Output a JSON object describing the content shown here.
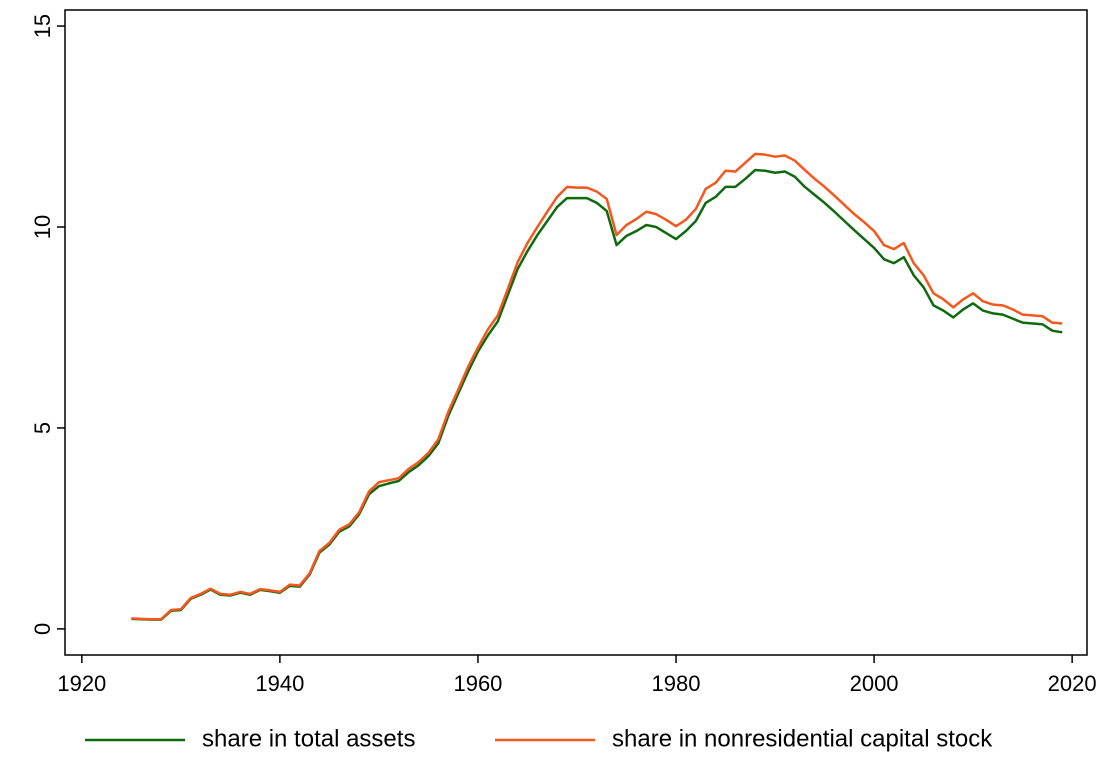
{
  "chart_data": {
    "type": "line",
    "x": [
      1925,
      1926,
      1927,
      1928,
      1929,
      1930,
      1931,
      1932,
      1933,
      1934,
      1935,
      1936,
      1937,
      1938,
      1939,
      1940,
      1941,
      1942,
      1943,
      1944,
      1945,
      1946,
      1947,
      1948,
      1949,
      1950,
      1951,
      1952,
      1953,
      1954,
      1955,
      1956,
      1957,
      1958,
      1959,
      1960,
      1961,
      1962,
      1963,
      1964,
      1965,
      1966,
      1967,
      1968,
      1969,
      1970,
      1971,
      1972,
      1973,
      1974,
      1975,
      1976,
      1977,
      1978,
      1979,
      1980,
      1981,
      1982,
      1983,
      1984,
      1985,
      1986,
      1987,
      1988,
      1989,
      1990,
      1991,
      1992,
      1993,
      1994,
      1995,
      1996,
      1997,
      1998,
      1999,
      2000,
      2001,
      2002,
      2003,
      2004,
      2005,
      2006,
      2007,
      2008,
      2009,
      2010,
      2011,
      2012,
      2013,
      2014,
      2015,
      2016,
      2017,
      2018,
      2019
    ],
    "series": [
      {
        "name": "share in total assets",
        "color": "#0f6a0f",
        "values": [
          0.25,
          0.24,
          0.23,
          0.23,
          0.45,
          0.47,
          0.75,
          0.85,
          0.98,
          0.85,
          0.83,
          0.9,
          0.85,
          0.97,
          0.94,
          0.9,
          1.07,
          1.05,
          1.35,
          1.9,
          2.1,
          2.42,
          2.55,
          2.85,
          3.35,
          3.55,
          3.62,
          3.68,
          3.9,
          4.07,
          4.3,
          4.62,
          5.3,
          5.85,
          6.4,
          6.9,
          7.3,
          7.65,
          8.3,
          8.95,
          9.4,
          9.8,
          10.15,
          10.5,
          10.72,
          10.72,
          10.72,
          10.6,
          10.4,
          9.55,
          9.78,
          9.9,
          10.05,
          10.0,
          9.85,
          9.7,
          9.9,
          10.15,
          10.6,
          10.75,
          11.0,
          11.0,
          11.2,
          11.42,
          11.4,
          11.35,
          11.38,
          11.25,
          11.0,
          10.8,
          10.6,
          10.38,
          10.15,
          9.92,
          9.7,
          9.48,
          9.2,
          9.1,
          9.25,
          8.8,
          8.5,
          8.05,
          7.92,
          7.75,
          7.95,
          8.1,
          7.92,
          7.85,
          7.82,
          7.72,
          7.62,
          7.6,
          7.58,
          7.42,
          7.38
        ]
      },
      {
        "name": "share in nonresidential capital stock",
        "color": "#f4581e",
        "values": [
          0.26,
          0.25,
          0.24,
          0.24,
          0.47,
          0.49,
          0.77,
          0.87,
          1.0,
          0.87,
          0.85,
          0.92,
          0.87,
          0.99,
          0.96,
          0.92,
          1.1,
          1.08,
          1.38,
          1.94,
          2.14,
          2.47,
          2.6,
          2.9,
          3.42,
          3.65,
          3.7,
          3.75,
          3.98,
          4.15,
          4.38,
          4.72,
          5.4,
          5.95,
          6.52,
          7.0,
          7.45,
          7.8,
          8.45,
          9.12,
          9.6,
          10.0,
          10.38,
          10.75,
          11.0,
          10.98,
          10.98,
          10.88,
          10.7,
          9.8,
          10.05,
          10.2,
          10.38,
          10.32,
          10.18,
          10.02,
          10.18,
          10.45,
          10.95,
          11.1,
          11.4,
          11.38,
          11.6,
          11.82,
          11.8,
          11.75,
          11.78,
          11.65,
          11.42,
          11.2,
          11.0,
          10.78,
          10.55,
          10.32,
          10.12,
          9.9,
          9.55,
          9.45,
          9.6,
          9.1,
          8.8,
          8.35,
          8.2,
          8.0,
          8.2,
          8.35,
          8.15,
          8.07,
          8.05,
          7.95,
          7.82,
          7.8,
          7.78,
          7.62,
          7.6
        ]
      }
    ],
    "xlim": [
      1918.3,
      2021.5
    ],
    "xticks": [
      1920,
      1940,
      1960,
      1980,
      2000,
      2020
    ],
    "ylim": [
      -0.65,
      15.4
    ],
    "yticks": [
      0,
      5,
      10,
      15
    ]
  }
}
